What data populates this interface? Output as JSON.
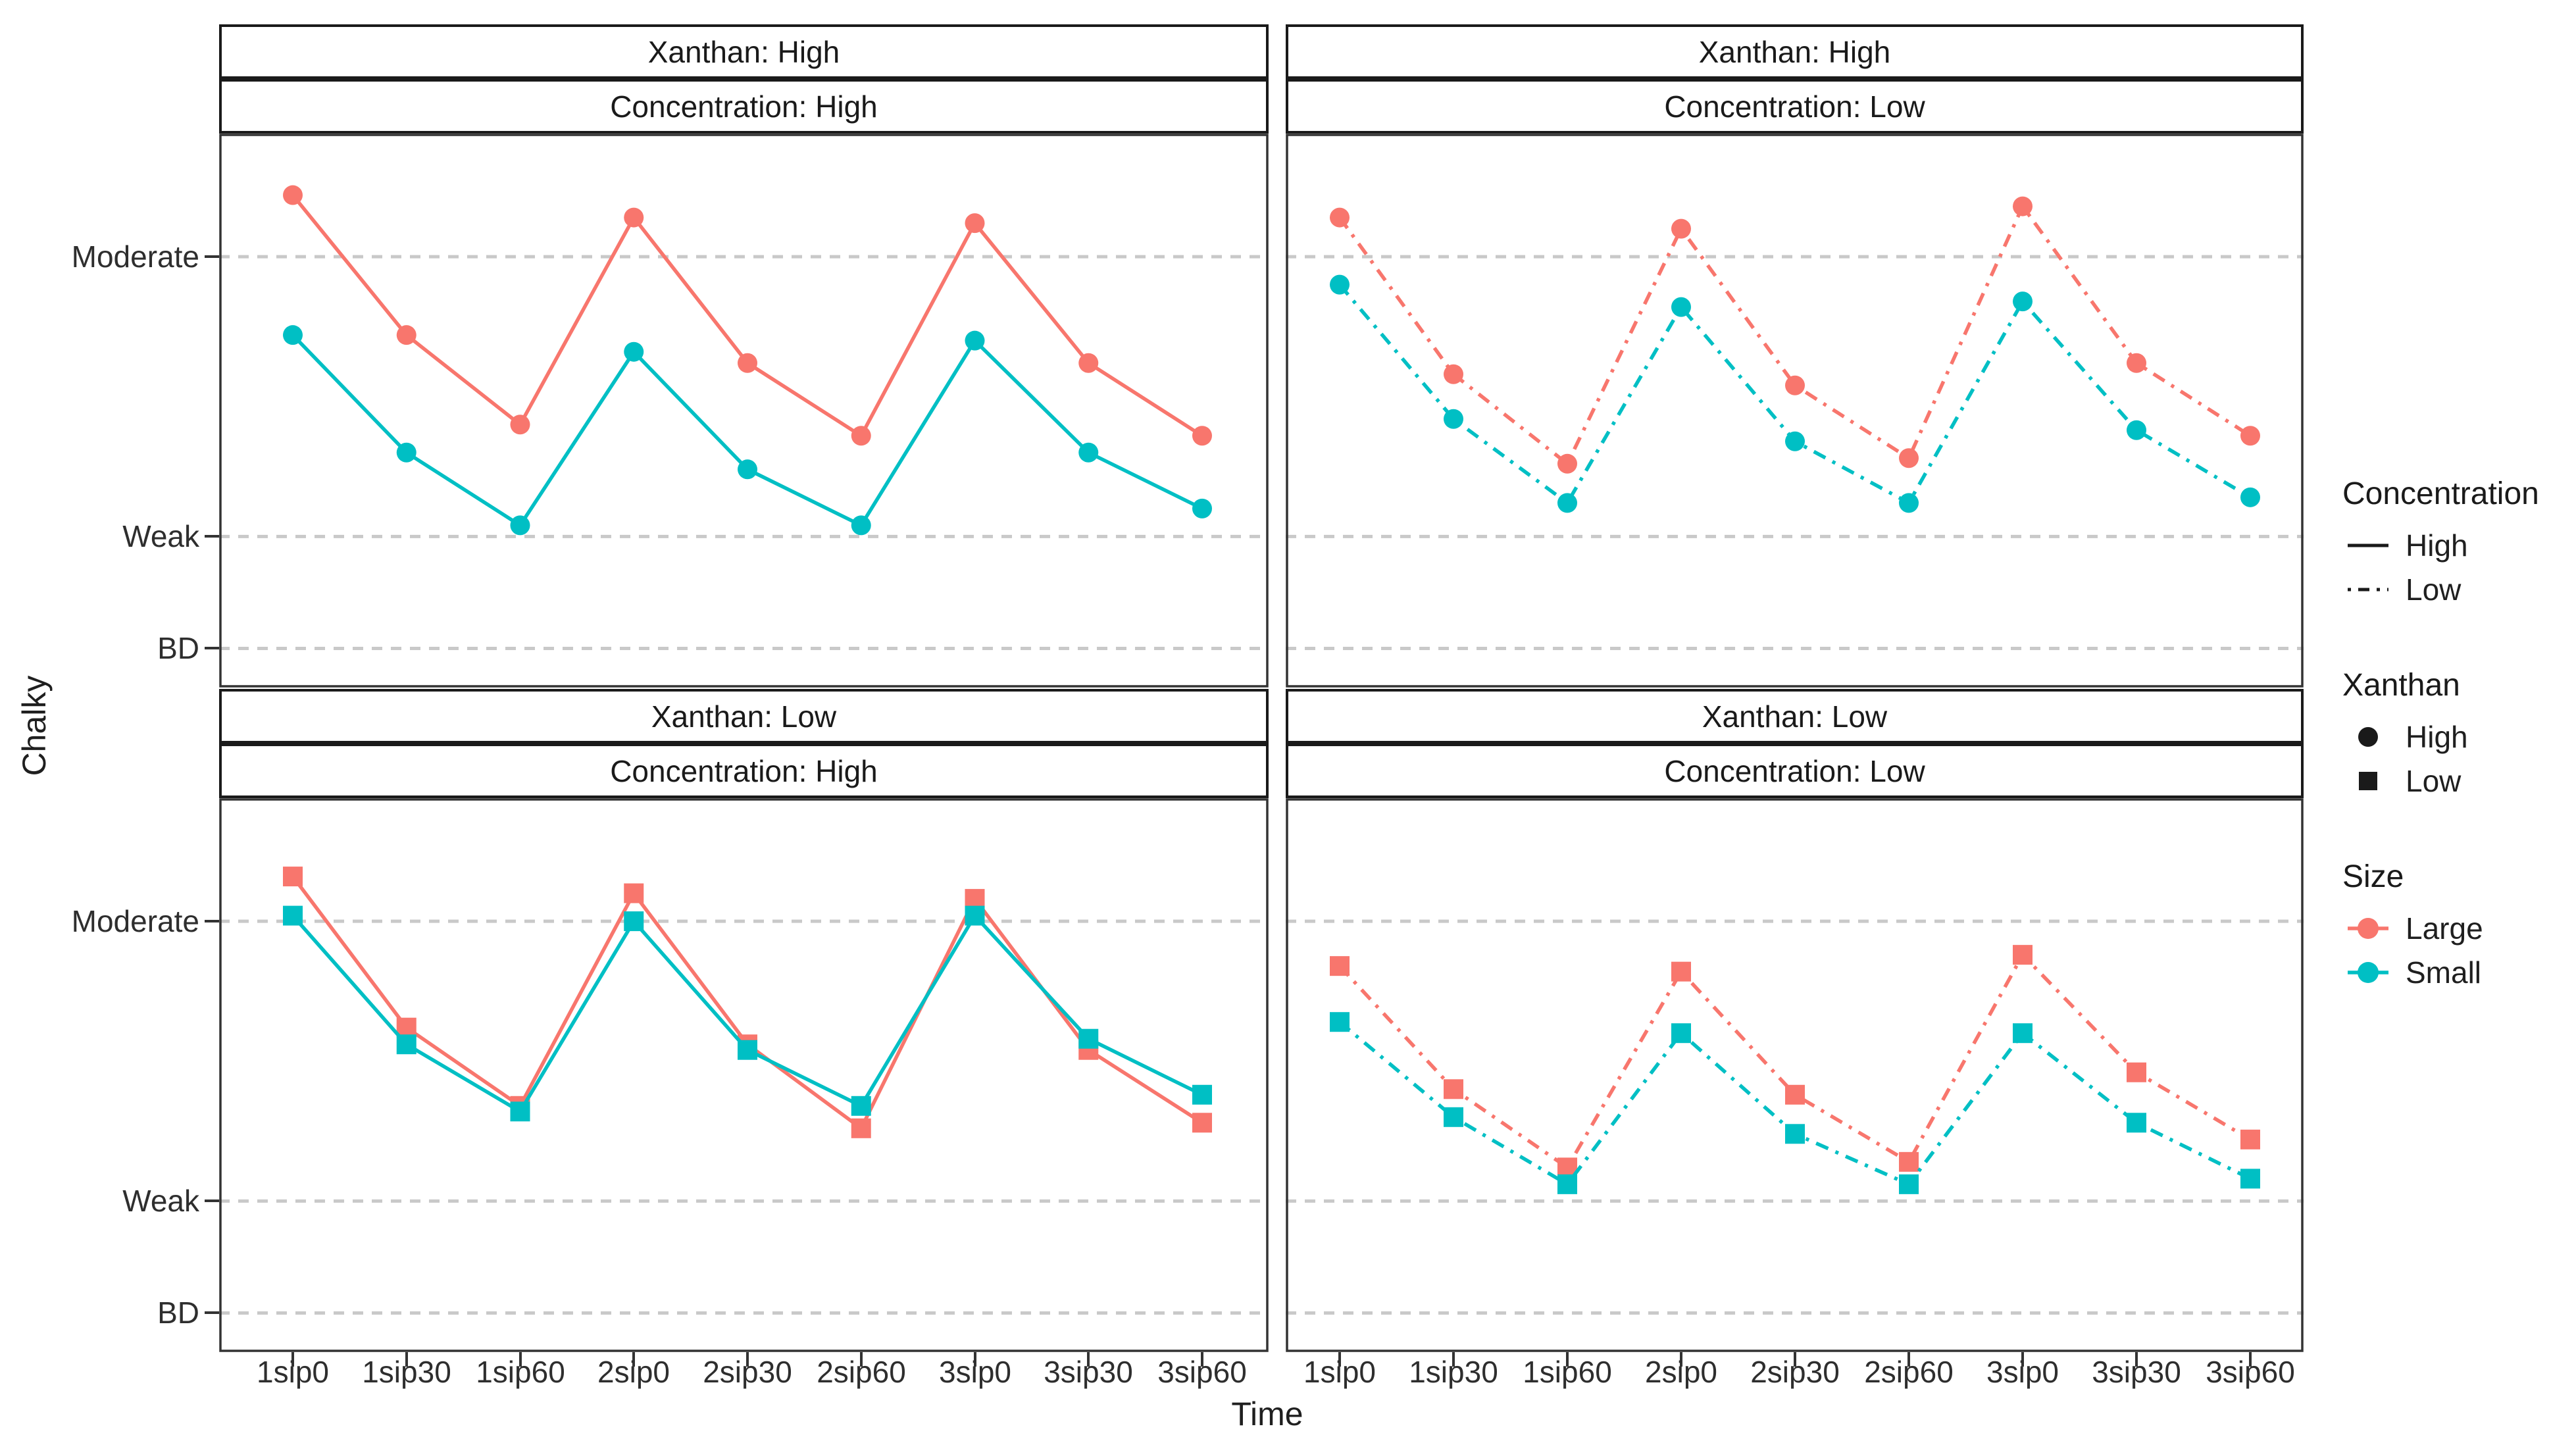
{
  "chart_data": {
    "type": "line",
    "title": "",
    "xlabel": "Time",
    "ylabel": "Chalky",
    "categories": [
      "1sip0",
      "1sip30",
      "1sip60",
      "2sip0",
      "2sip30",
      "2sip60",
      "3sip0",
      "3sip30",
      "3sip60"
    ],
    "y_axis": {
      "tick_labels": [
        "Moderate",
        "Weak",
        "BD"
      ],
      "tick_values": [
        7,
        2,
        0
      ],
      "ylim": [
        -0.7,
        9.2
      ],
      "grid": "dashed horizontal gridlines at each labeled break"
    },
    "facet_layout": "2 rows (Xanthan: High / Low) x 2 columns (Concentration: High / Low)",
    "facets": [
      {
        "id": "xanthan-high-concentration-high",
        "strip_labels": [
          "Xanthan: High",
          "Concentration: High"
        ],
        "marker": "circle",
        "linestyle": "solid",
        "series": [
          {
            "name": "Large",
            "color": "#F8766D",
            "values": [
              8.1,
              5.6,
              4.0,
              7.7,
              5.1,
              3.8,
              7.6,
              5.1,
              3.8
            ]
          },
          {
            "name": "Small",
            "color": "#00BFC4",
            "values": [
              5.6,
              3.5,
              2.2,
              5.3,
              3.2,
              2.2,
              5.5,
              3.5,
              2.5
            ]
          }
        ]
      },
      {
        "id": "xanthan-high-concentration-low",
        "strip_labels": [
          "Xanthan: High",
          "Concentration: Low"
        ],
        "marker": "circle",
        "linestyle": "dashdot",
        "series": [
          {
            "name": "Large",
            "color": "#F8766D",
            "values": [
              7.7,
              4.9,
              3.3,
              7.5,
              4.7,
              3.4,
              7.9,
              5.1,
              3.8
            ]
          },
          {
            "name": "Small",
            "color": "#00BFC4",
            "values": [
              6.5,
              4.1,
              2.6,
              6.1,
              3.7,
              2.6,
              6.2,
              3.9,
              2.7
            ]
          }
        ]
      },
      {
        "id": "xanthan-low-concentration-high",
        "strip_labels": [
          "Xanthan: Low",
          "Concentration: High"
        ],
        "marker": "square",
        "linestyle": "solid",
        "series": [
          {
            "name": "Large",
            "color": "#F8766D",
            "values": [
              7.8,
              5.1,
              3.7,
              7.5,
              4.8,
              3.3,
              7.4,
              4.7,
              3.4
            ]
          },
          {
            "name": "Small",
            "color": "#00BFC4",
            "values": [
              7.1,
              4.8,
              3.6,
              7.0,
              4.7,
              3.7,
              7.1,
              4.9,
              3.9
            ]
          }
        ]
      },
      {
        "id": "xanthan-low-concentration-low",
        "strip_labels": [
          "Xanthan: Low",
          "Concentration: Low"
        ],
        "marker": "square",
        "linestyle": "dashdot",
        "series": [
          {
            "name": "Large",
            "color": "#F8766D",
            "values": [
              6.2,
              4.0,
              2.6,
              6.1,
              3.9,
              2.7,
              6.4,
              4.3,
              3.1
            ]
          },
          {
            "name": "Small",
            "color": "#00BFC4",
            "values": [
              5.2,
              3.5,
              2.3,
              5.0,
              3.2,
              2.3,
              5.0,
              3.4,
              2.4
            ]
          }
        ]
      }
    ],
    "legend": {
      "position": "right",
      "groups": [
        {
          "title": "Concentration",
          "items": [
            {
              "label": "High",
              "key": "solid-line"
            },
            {
              "label": "Low",
              "key": "dashdot-line"
            }
          ]
        },
        {
          "title": "Xanthan",
          "items": [
            {
              "label": "High",
              "key": "circle"
            },
            {
              "label": "Low",
              "key": "square"
            }
          ]
        },
        {
          "title": "Size",
          "items": [
            {
              "label": "Large",
              "key": "point-line",
              "color": "#F8766D"
            },
            {
              "label": "Small",
              "key": "point-line",
              "color": "#00BFC4"
            }
          ]
        }
      ]
    },
    "colors": {
      "large": "#F8766D",
      "small": "#00BFC4",
      "grid": "#C9C9C9",
      "panel_border": "#333333",
      "legend_key": "#1A1A1A",
      "text": "#1F1F1F"
    }
  }
}
